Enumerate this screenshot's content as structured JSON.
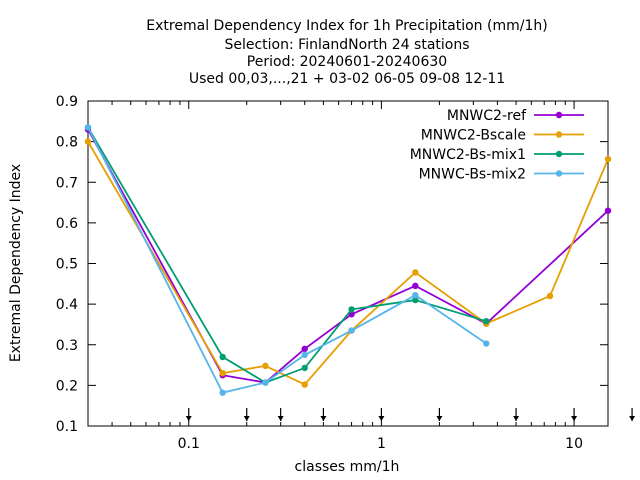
{
  "chart_data": {
    "type": "line",
    "title_lines": [
      "Extremal Dependency Index  for 1h Precipitation (mm/1h)",
      "Selection: FinlandNorth     24 stations",
      "Period: 20240601-20240630",
      "Used 00,03,...,21 + 03-02 06-05 09-08 12-11"
    ],
    "xlabel": "classes mm/1h",
    "ylabel": "Extremal Dependency Index",
    "x_scale": "log",
    "xlim": [
      0.03,
      15
    ],
    "ylim": [
      0.1,
      0.9
    ],
    "x_tick_labels": [
      {
        "value": 0.1,
        "label": "0.1"
      },
      {
        "value": 1,
        "label": "1"
      },
      {
        "value": 10,
        "label": "10"
      }
    ],
    "y_tick_labels": [
      "0.1",
      "0.2",
      "0.3",
      "0.4",
      "0.5",
      "0.6",
      "0.7",
      "0.8",
      "0.9"
    ],
    "y_ticks": [
      0.1,
      0.2,
      0.3,
      0.4,
      0.5,
      0.6,
      0.7,
      0.8,
      0.9
    ],
    "class_markers": [
      0.1,
      0.2,
      0.3,
      0.5,
      1,
      2,
      5,
      10,
      20
    ],
    "legend_position": "top-right",
    "series": [
      {
        "name": "MNWC2-ref",
        "color": "#9400d3",
        "x": [
          0.03,
          0.15,
          0.25,
          0.4,
          0.7,
          1.5,
          3.5,
          15
        ],
        "y": [
          0.83,
          0.225,
          0.207,
          0.29,
          0.375,
          0.445,
          0.352,
          0.63
        ]
      },
      {
        "name": "MNWC2-Bscale",
        "color": "#e69f00",
        "x": [
          0.03,
          0.15,
          0.25,
          0.4,
          0.7,
          1.5,
          3.5,
          7.5,
          15
        ],
        "y": [
          0.8,
          0.23,
          0.248,
          0.202,
          0.335,
          0.478,
          0.352,
          0.42,
          0.757
        ]
      },
      {
        "name": "MNWC2-Bs-mix1",
        "color": "#009e73",
        "x": [
          0.03,
          0.15,
          0.25,
          0.4,
          0.7,
          1.5,
          3.5
        ],
        "y": [
          0.835,
          0.27,
          0.207,
          0.243,
          0.387,
          0.41,
          0.358
        ]
      },
      {
        "name": "MNWC-Bs-mix2",
        "color": "#56b4e9",
        "x": [
          0.03,
          0.15,
          0.25,
          0.4,
          0.7,
          1.5,
          3.5
        ],
        "y": [
          0.835,
          0.182,
          0.207,
          0.275,
          0.335,
          0.422,
          0.303
        ]
      }
    ]
  }
}
